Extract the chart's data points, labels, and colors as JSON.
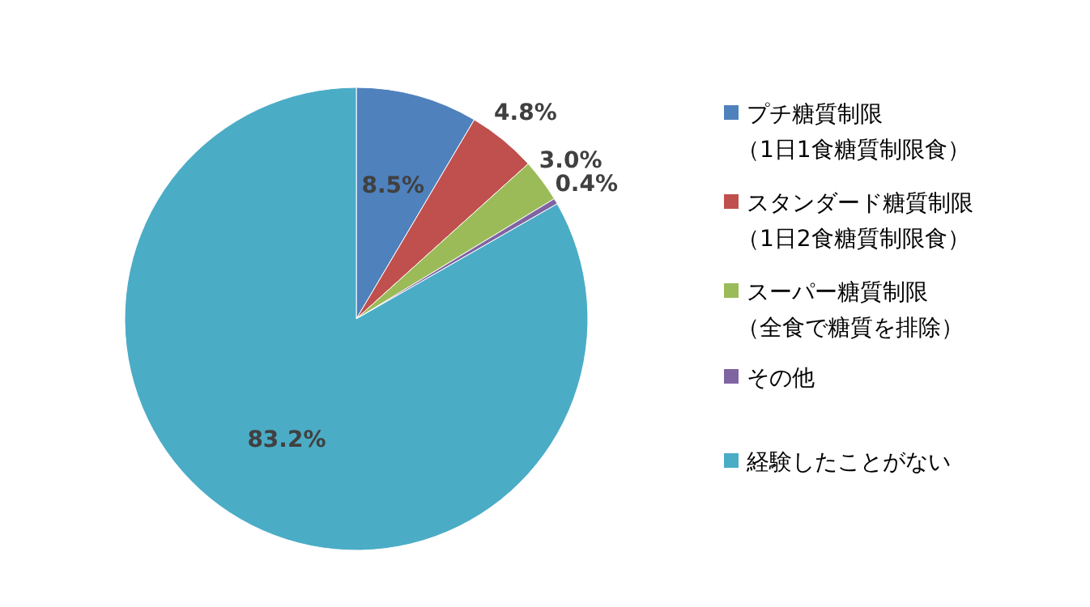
{
  "chart_data": {
    "type": "pie",
    "categories": [
      "プチ糖質制限（1日1食糖質制限食）",
      "スタンダード糖質制限（1日2食糖質制限食）",
      "スーパー糖質制限（全食で糖質を排除）",
      "その他",
      "経験したことがない"
    ],
    "values": [
      8.5,
      4.8,
      3.0,
      0.4,
      83.2
    ],
    "colors": [
      "#4f81bd",
      "#c0504d",
      "#9bbb59",
      "#8064a2",
      "#4bacc6"
    ],
    "value_labels": [
      "8.5%",
      "4.8%",
      "3.0%",
      "0.4%",
      "83.2%"
    ],
    "legend": "right"
  }
}
